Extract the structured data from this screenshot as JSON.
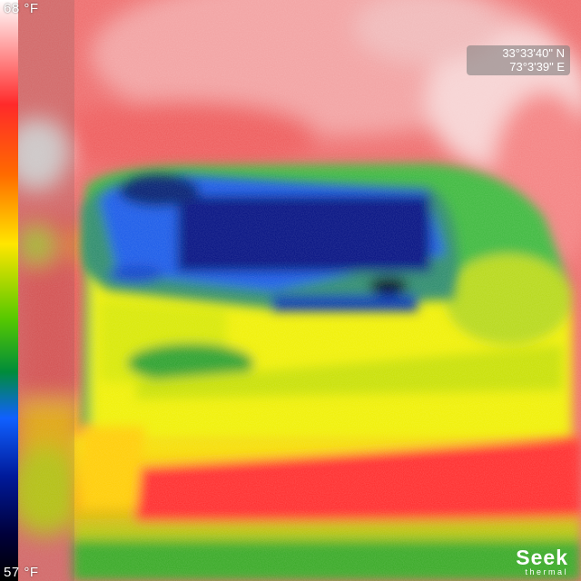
{
  "scale": {
    "max_label": "68 °F",
    "min_label": "57 °F"
  },
  "gps": {
    "latitude": "33°33'40\" N",
    "longitude": "73°3'39\" E"
  },
  "brand": {
    "name": "Seek",
    "sub": "thermal"
  },
  "colors": {
    "hot": "#ff2a2a",
    "warm": "#ffe600",
    "mild": "#55c800",
    "cool": "#1060ff",
    "cold": "#001a9a"
  }
}
